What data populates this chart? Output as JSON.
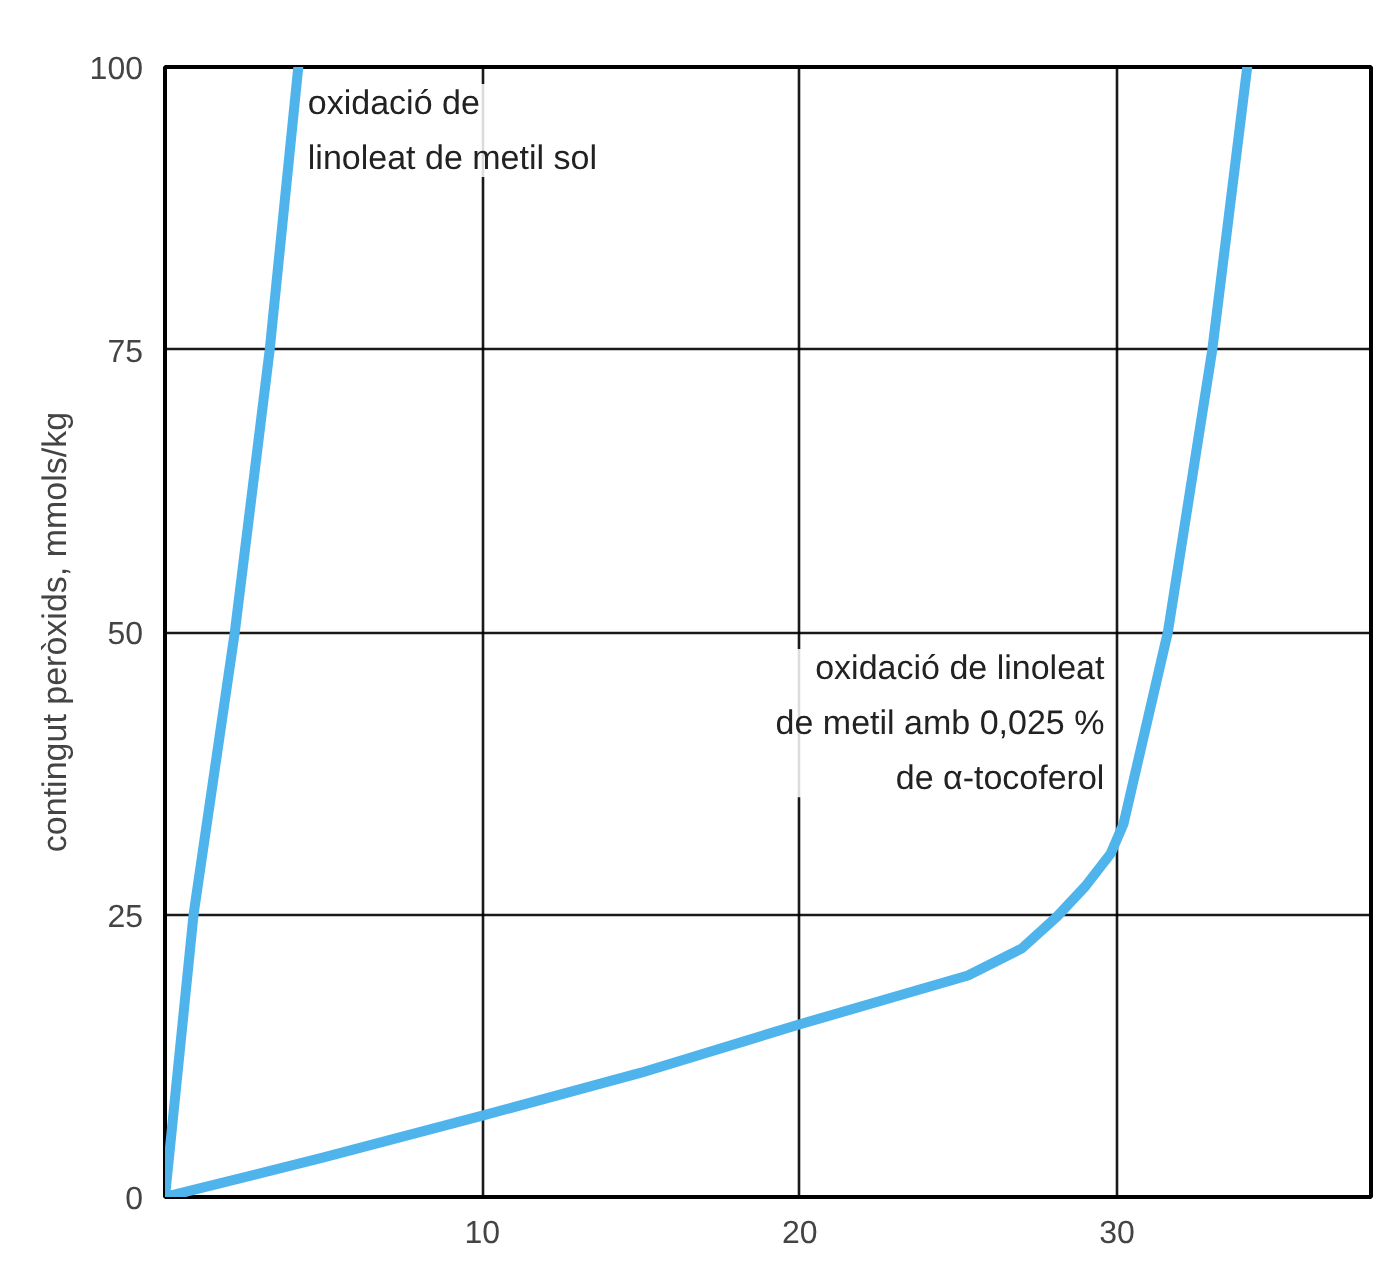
{
  "chart_data": {
    "type": "line",
    "ylabel": "contingut peròxids, mmols/kg",
    "xlim": [
      0,
      38
    ],
    "ylim": [
      0,
      100
    ],
    "xticks": [
      10,
      20,
      30
    ],
    "yticks": [
      0,
      25,
      50,
      75,
      100
    ],
    "grid": true,
    "legend": false,
    "marker": "none",
    "line_style": "solid",
    "series": [
      {
        "name": "oxidació de\nlinoleat de metil sol",
        "color": "#4fb4ec",
        "x": [
          0,
          0.9,
          2.2,
          3.3,
          4.2
        ],
        "values": [
          0,
          25,
          50,
          75,
          100
        ]
      },
      {
        "name": "oxidació de linoleat\nde metil amb 0,025 %\nde α-tocoferol",
        "color": "#4fb4ec",
        "x": [
          0,
          5,
          10,
          15,
          19.9,
          25.3,
          27,
          28.1,
          29,
          29.8,
          30.2,
          31.6,
          33.0,
          34.1
        ],
        "values": [
          0,
          3.5,
          7.2,
          11,
          15.2,
          19.6,
          22,
          24.8,
          27.5,
          30.4,
          33,
          50,
          75,
          100
        ]
      }
    ]
  }
}
